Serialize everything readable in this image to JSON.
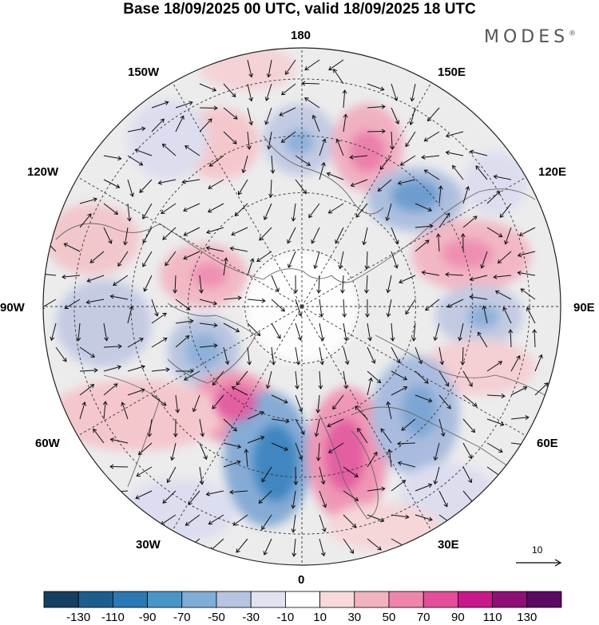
{
  "title": "Base 18/09/2025 00 UTC, valid 18/09/2025 18 UTC",
  "brand": "MODES",
  "brand_mark": "®",
  "map": {
    "projection": "polar stereographic, north pole",
    "longitude_labels": {
      "lon_180": "180",
      "lon_150e": "150E",
      "lon_120e": "120E",
      "lon_90e": "90E",
      "lon_60e": "60E",
      "lon_30e": "30E",
      "lon_0": "0",
      "lon_30w": "30W",
      "lon_60w": "60W",
      "lon_90w": "90W",
      "lon_120w": "120W",
      "lon_150w": "150W"
    },
    "vector_scale": "10"
  },
  "colorbar": {
    "ticks": [
      "-130",
      "-110",
      "-90",
      "-70",
      "-50",
      "-30",
      "-10",
      "10",
      "30",
      "50",
      "70",
      "90",
      "110",
      "130"
    ],
    "colors": [
      "#16405f",
      "#1c5d8d",
      "#2a78b4",
      "#4a95c8",
      "#7eaed5",
      "#b6c4e0",
      "#e2e3f0",
      "#ffffff",
      "#f8d9dc",
      "#f2b3c0",
      "#ee86ab",
      "#e34d9a",
      "#c8188a",
      "#8e0f78",
      "#5a0a63"
    ]
  }
}
